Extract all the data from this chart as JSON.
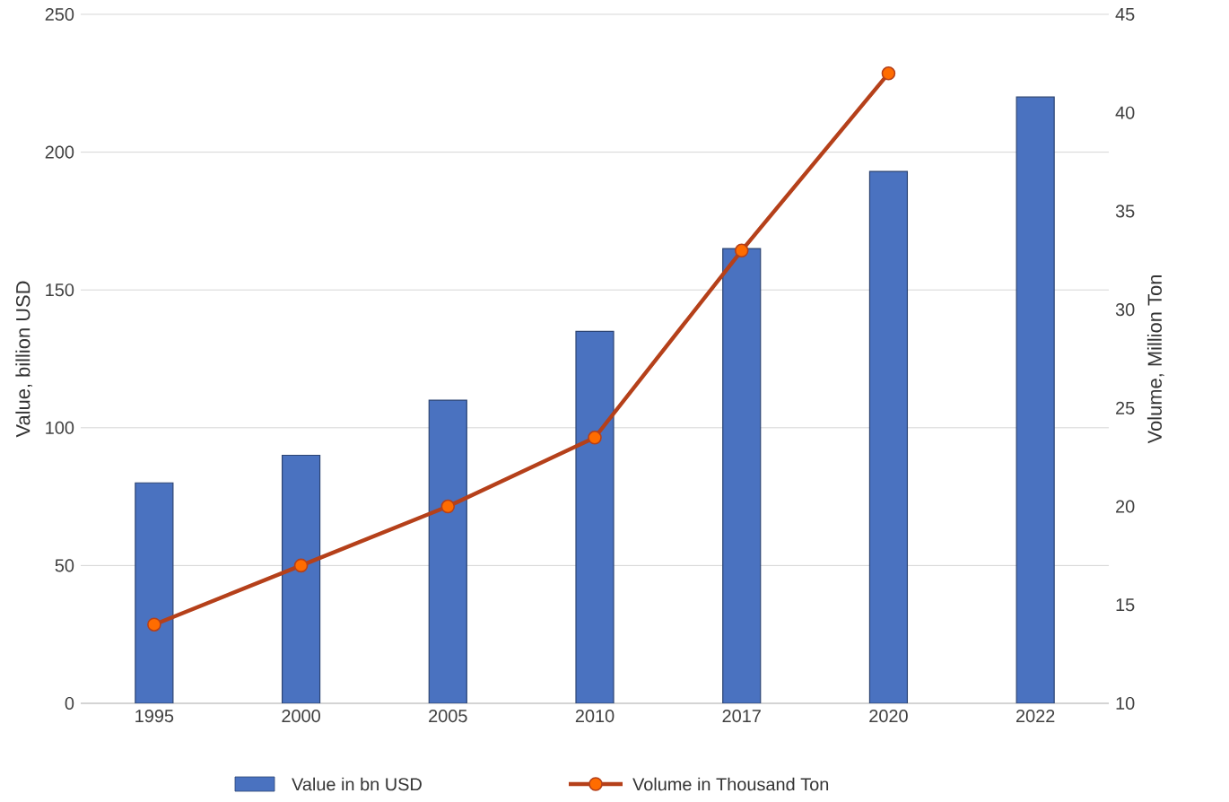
{
  "chart_data": {
    "type": "bar",
    "categories": [
      "1995",
      "2000",
      "2005",
      "2010",
      "2017",
      "2020",
      "2022"
    ],
    "ylabel": "Value, billion USD",
    "y2label": "Volume, Million Ton",
    "ylim": [
      0,
      250
    ],
    "yticks": [
      0,
      50,
      100,
      150,
      200,
      250
    ],
    "y2lim": [
      10,
      45
    ],
    "y2ticks": [
      10,
      15,
      20,
      25,
      30,
      35,
      40,
      45
    ],
    "grid": "y",
    "legend": "bottom",
    "series": [
      {
        "name": "Value in bn USD",
        "color": "#4a72c0",
        "values": [
          80,
          90,
          110,
          135,
          165,
          193,
          220
        ]
      },
      {
        "name": "Volume in Thousand Ton",
        "type": "line",
        "axis": "y2",
        "color": "#b5401a",
        "marker": "circle",
        "values": [
          14,
          17,
          20,
          23.5,
          33,
          42,
          null
        ]
      }
    ]
  }
}
